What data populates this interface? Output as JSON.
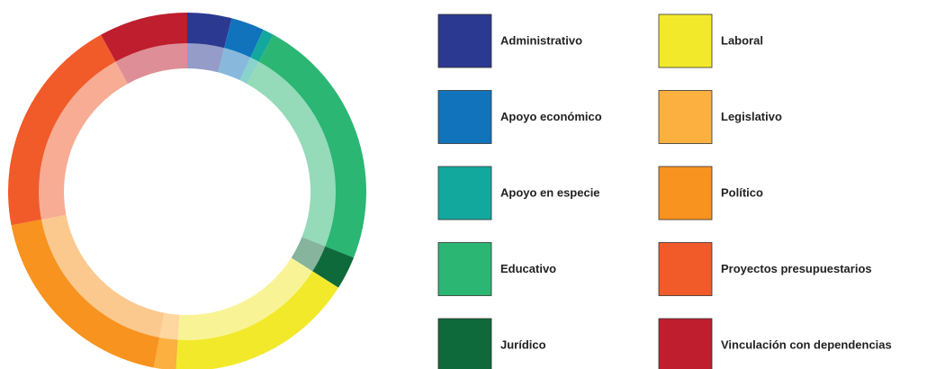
{
  "chart_data": {
    "type": "donut",
    "categories": [
      "Administrativo",
      "Apoyo económico",
      "Apoyo en especie",
      "Educativo",
      "Jurídico",
      "Laboral",
      "Legislativo",
      "Político",
      "Proyectos presupuestarios",
      "Vinculación con dependencias"
    ],
    "values": [
      4,
      3,
      1,
      23,
      3,
      17,
      2,
      19,
      20,
      8
    ],
    "colors": [
      "#2b3990",
      "#1173bc",
      "#13a89e",
      "#2bb673",
      "#0f6a3b",
      "#f2e92b",
      "#fbb040",
      "#f7931e",
      "#f15a29",
      "#be1e2d"
    ],
    "legend": "right"
  }
}
